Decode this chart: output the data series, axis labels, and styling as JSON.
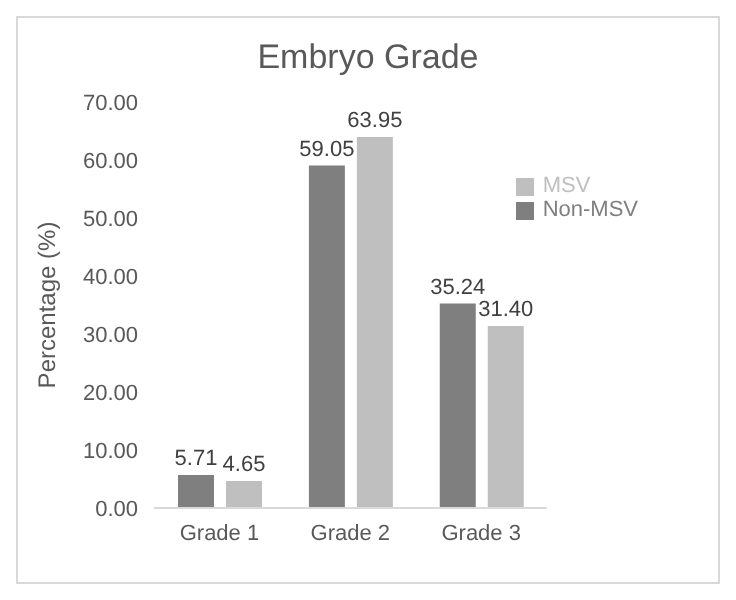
{
  "chart_data": {
    "type": "bar",
    "title": "Embryo Grade",
    "ylabel": "Percentage (%)",
    "categories": [
      "Grade 1",
      "Grade 2",
      "Grade 3"
    ],
    "series": [
      {
        "name": "Non-MSV",
        "color": "#7f7f7f",
        "values": [
          5.71,
          59.05,
          35.24
        ],
        "value_labels": [
          "5.71",
          "59.05",
          "35.24"
        ]
      },
      {
        "name": "MSV",
        "color": "#bfbfbf",
        "values": [
          4.65,
          63.95,
          31.4
        ],
        "value_labels": [
          "4.65",
          "63.95",
          "31.40"
        ]
      }
    ],
    "ylim": [
      0,
      70
    ],
    "yticks": [
      {
        "value": 0,
        "label": "0.00"
      },
      {
        "value": 10,
        "label": "10.00"
      },
      {
        "value": 20,
        "label": "20.00"
      },
      {
        "value": 30,
        "label": "30.00"
      },
      {
        "value": 40,
        "label": "40.00"
      },
      {
        "value": 50,
        "label": "50.00"
      },
      {
        "value": 60,
        "label": "60.00"
      },
      {
        "value": 70,
        "label": "70.00"
      }
    ],
    "grid": false,
    "legend": "top right"
  }
}
